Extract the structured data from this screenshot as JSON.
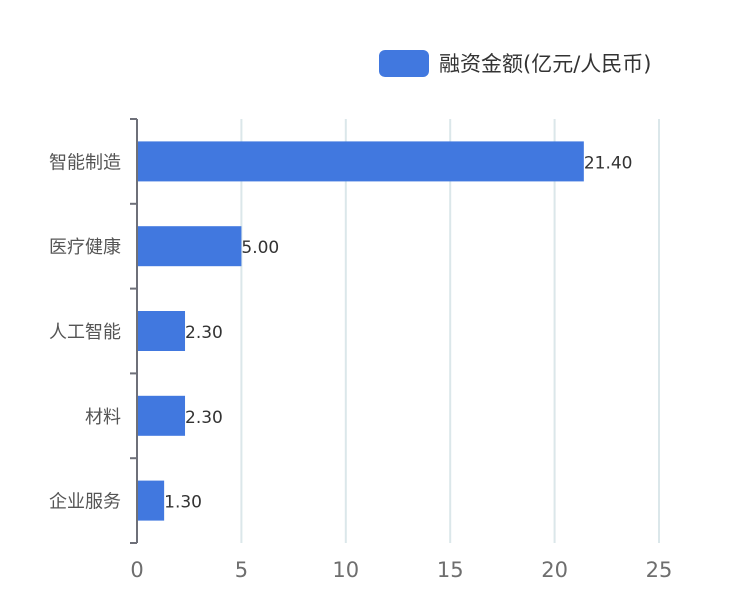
{
  "chart_data": {
    "type": "bar",
    "orientation": "horizontal",
    "categories": [
      "智能制造",
      "医疗健康",
      "人工智能",
      "材料",
      "企业服务"
    ],
    "series": [
      {
        "name": "融资金额(亿元/人民币)",
        "values": [
          21.4,
          5.0,
          2.3,
          2.3,
          1.3
        ],
        "data_labels": [
          "21.40",
          "5.00",
          "2.30",
          "2.30",
          "1.30"
        ],
        "color": "#4178df"
      }
    ],
    "x_ticks": [
      "0",
      "5",
      "10",
      "15",
      "20",
      "25"
    ],
    "xlim": [
      0,
      25
    ],
    "grid": true,
    "legend_position": "top-right"
  }
}
